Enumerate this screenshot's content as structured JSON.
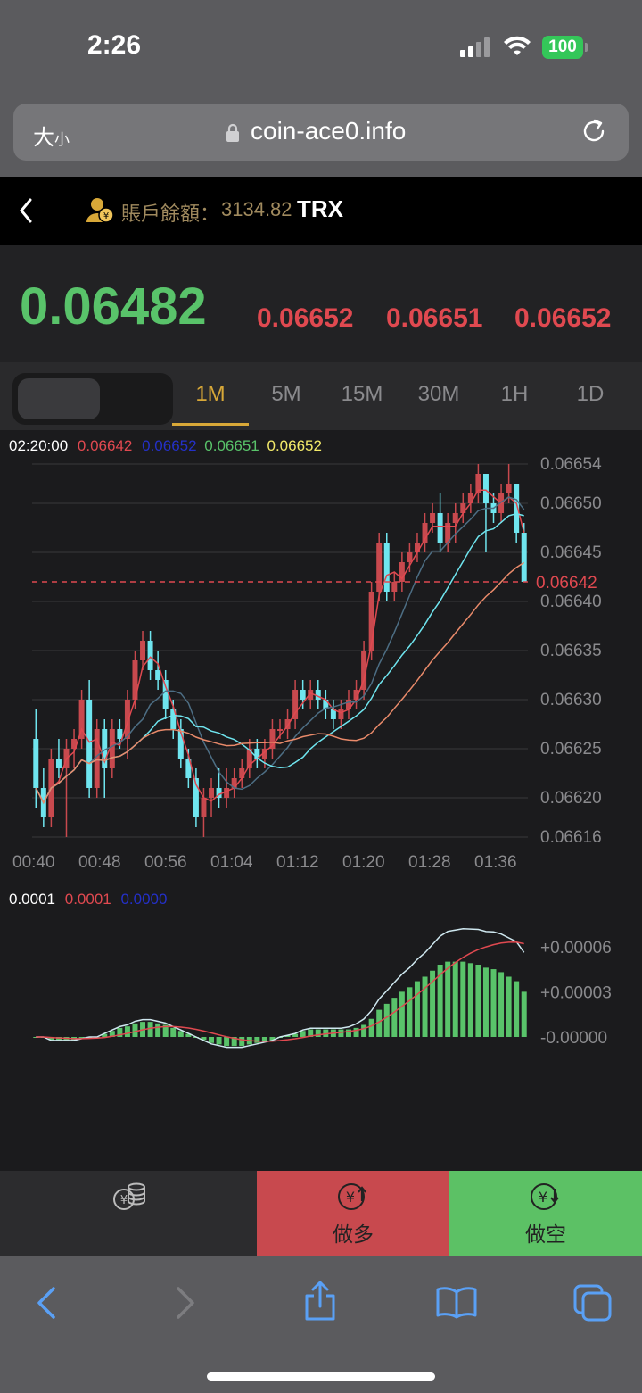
{
  "status": {
    "time": "2:26",
    "battery": "100"
  },
  "browser": {
    "text_size_large": "大",
    "text_size_small": "小",
    "url": "coin-ace0.info"
  },
  "account": {
    "label": "賬戶餘額：",
    "balance": "3134.82",
    "unit": "TRX"
  },
  "prices": {
    "main": "0.06482",
    "p1": "0.06652",
    "p2": "0.06651",
    "p3": "0.06652"
  },
  "tabs": [
    "1M",
    "5M",
    "15M",
    "30M",
    "1H",
    "1D"
  ],
  "active_tab": "1M",
  "chart_legend": {
    "time": "02:20:00",
    "v1": "0.06642",
    "v2": "0.06652",
    "v3": "0.06651",
    "v4": "0.06652"
  },
  "current_price_label": "0.06642",
  "macd_legend": {
    "v1": "0.0001",
    "v2": "0.0001",
    "v3": "0.0000"
  },
  "actions": {
    "long": "做多",
    "short": "做空"
  },
  "colors": {
    "up": "#59c36a",
    "down": "#e04950",
    "accent": "#d8a838",
    "cyan": "#6fe5ef",
    "long_bg": "#c8494e",
    "short_bg": "#5cc165"
  },
  "chart_data": [
    {
      "type": "candlestick",
      "ylim": [
        0.06616,
        0.06654
      ],
      "y_ticks": [
        "0.06654",
        "0.06650",
        "0.06645",
        "0.06640",
        "0.06635",
        "0.06630",
        "0.06625",
        "0.06620",
        "0.06616"
      ],
      "x_ticks": [
        "00:40",
        "00:48",
        "00:56",
        "01:04",
        "01:12",
        "01:20",
        "01:28",
        "01:36"
      ],
      "current_price": 0.06642,
      "candles": [
        [
          0.06626,
          0.06629,
          0.06619,
          0.06621
        ],
        [
          0.06621,
          0.06623,
          0.06617,
          0.06618
        ],
        [
          0.06618,
          0.06625,
          0.06617,
          0.06624
        ],
        [
          0.06624,
          0.06626,
          0.06622,
          0.06623
        ],
        [
          0.06623,
          0.06626,
          0.06616,
          0.06625
        ],
        [
          0.06625,
          0.06627,
          0.06623,
          0.06626
        ],
        [
          0.06626,
          0.06631,
          0.06625,
          0.0663
        ],
        [
          0.0663,
          0.06632,
          0.0662,
          0.06621
        ],
        [
          0.06621,
          0.06628,
          0.0662,
          0.06627
        ],
        [
          0.06627,
          0.06628,
          0.0662,
          0.06623
        ],
        [
          0.06623,
          0.06628,
          0.06622,
          0.06627
        ],
        [
          0.06627,
          0.06628,
          0.06625,
          0.06626
        ],
        [
          0.06626,
          0.06631,
          0.06624,
          0.0663
        ],
        [
          0.0663,
          0.06635,
          0.06629,
          0.06634
        ],
        [
          0.06634,
          0.06637,
          0.06633,
          0.06636
        ],
        [
          0.06636,
          0.06637,
          0.06632,
          0.06633
        ],
        [
          0.06633,
          0.06635,
          0.06631,
          0.06632
        ],
        [
          0.06632,
          0.06633,
          0.06628,
          0.06629
        ],
        [
          0.06629,
          0.0663,
          0.06626,
          0.06627
        ],
        [
          0.06627,
          0.06628,
          0.06623,
          0.06624
        ],
        [
          0.06624,
          0.06625,
          0.06621,
          0.06622
        ],
        [
          0.06622,
          0.06623,
          0.06617,
          0.06618
        ],
        [
          0.06618,
          0.06621,
          0.06616,
          0.0662
        ],
        [
          0.0662,
          0.06622,
          0.06618,
          0.06621
        ],
        [
          0.06621,
          0.06623,
          0.06619,
          0.0662
        ],
        [
          0.0662,
          0.06623,
          0.06619,
          0.06621
        ],
        [
          0.06621,
          0.06623,
          0.0662,
          0.06622
        ],
        [
          0.06622,
          0.06624,
          0.06621,
          0.06623
        ],
        [
          0.06623,
          0.06626,
          0.06622,
          0.06625
        ],
        [
          0.06625,
          0.06626,
          0.06623,
          0.06624
        ],
        [
          0.06624,
          0.06626,
          0.06623,
          0.06625
        ],
        [
          0.06625,
          0.06628,
          0.06624,
          0.06627
        ],
        [
          0.06627,
          0.06628,
          0.06626,
          0.06627
        ],
        [
          0.06627,
          0.06629,
          0.06626,
          0.06628
        ],
        [
          0.06628,
          0.06632,
          0.06627,
          0.06631
        ],
        [
          0.06631,
          0.06632,
          0.06629,
          0.0663
        ],
        [
          0.0663,
          0.06632,
          0.06629,
          0.06631
        ],
        [
          0.06631,
          0.06632,
          0.06629,
          0.0663
        ],
        [
          0.0663,
          0.06631,
          0.06628,
          0.06629
        ],
        [
          0.06629,
          0.0663,
          0.06627,
          0.06628
        ],
        [
          0.06628,
          0.0663,
          0.06627,
          0.06629
        ],
        [
          0.06629,
          0.06631,
          0.06628,
          0.0663
        ],
        [
          0.0663,
          0.06632,
          0.06629,
          0.06631
        ],
        [
          0.06631,
          0.06636,
          0.0663,
          0.06635
        ],
        [
          0.06635,
          0.06642,
          0.06634,
          0.06641
        ],
        [
          0.06641,
          0.06647,
          0.0664,
          0.06646
        ],
        [
          0.06646,
          0.06647,
          0.0664,
          0.06641
        ],
        [
          0.06641,
          0.06643,
          0.0664,
          0.06642
        ],
        [
          0.06642,
          0.06645,
          0.06641,
          0.06644
        ],
        [
          0.06644,
          0.06646,
          0.06643,
          0.06645
        ],
        [
          0.06645,
          0.06647,
          0.06644,
          0.06646
        ],
        [
          0.06646,
          0.06649,
          0.06645,
          0.06648
        ],
        [
          0.06648,
          0.0665,
          0.06647,
          0.06649
        ],
        [
          0.06649,
          0.06651,
          0.06645,
          0.06646
        ],
        [
          0.06646,
          0.06649,
          0.06645,
          0.06648
        ],
        [
          0.06648,
          0.0665,
          0.06646,
          0.06649
        ],
        [
          0.06649,
          0.06651,
          0.06648,
          0.0665
        ],
        [
          0.0665,
          0.06652,
          0.06649,
          0.06651
        ],
        [
          0.06651,
          0.06654,
          0.0665,
          0.06653
        ],
        [
          0.06653,
          0.06653,
          0.06645,
          0.0665
        ],
        [
          0.0665,
          0.06651,
          0.06648,
          0.06649
        ],
        [
          0.06649,
          0.06652,
          0.06648,
          0.06651
        ],
        [
          0.06651,
          0.06654,
          0.0665,
          0.06652
        ],
        [
          0.06652,
          0.06652,
          0.06646,
          0.06647
        ],
        [
          0.06647,
          0.06648,
          0.06642,
          0.06642
        ]
      ]
    },
    {
      "type": "bar",
      "y_ticks": [
        "+0.00006",
        "+0.00003",
        "-0.00000"
      ],
      "ylim": [
        -1e-05,
        7e-05
      ],
      "histogram": [
        0.0,
        0.0,
        -2e-06,
        -2e-06,
        -2e-06,
        -2e-06,
        -1e-06,
        0.0,
        0.0,
        2e-06,
        4e-06,
        6e-06,
        7e-06,
        9e-06,
        1e-05,
        1e-05,
        9e-06,
        8e-06,
        6e-06,
        4e-06,
        2e-06,
        0.0,
        -2e-06,
        -4e-06,
        -5e-06,
        -6e-06,
        -6e-06,
        -6e-06,
        -5e-06,
        -4e-06,
        -3e-06,
        -2e-06,
        0.0,
        1e-06,
        2e-06,
        4e-06,
        5e-06,
        5e-06,
        5e-06,
        5e-06,
        5e-06,
        5e-06,
        6e-06,
        8e-06,
        1.2e-05,
        1.8e-05,
        2.2e-05,
        2.6e-05,
        3e-05,
        3.3e-05,
        3.7e-05,
        4e-05,
        4.4e-05,
        4.8e-05,
        5e-05,
        5e-05,
        5e-05,
        4.9e-05,
        4.8e-05,
        4.6e-05,
        4.5e-05,
        4.3e-05,
        4e-05,
        3.7e-05,
        3e-05
      ]
    }
  ]
}
